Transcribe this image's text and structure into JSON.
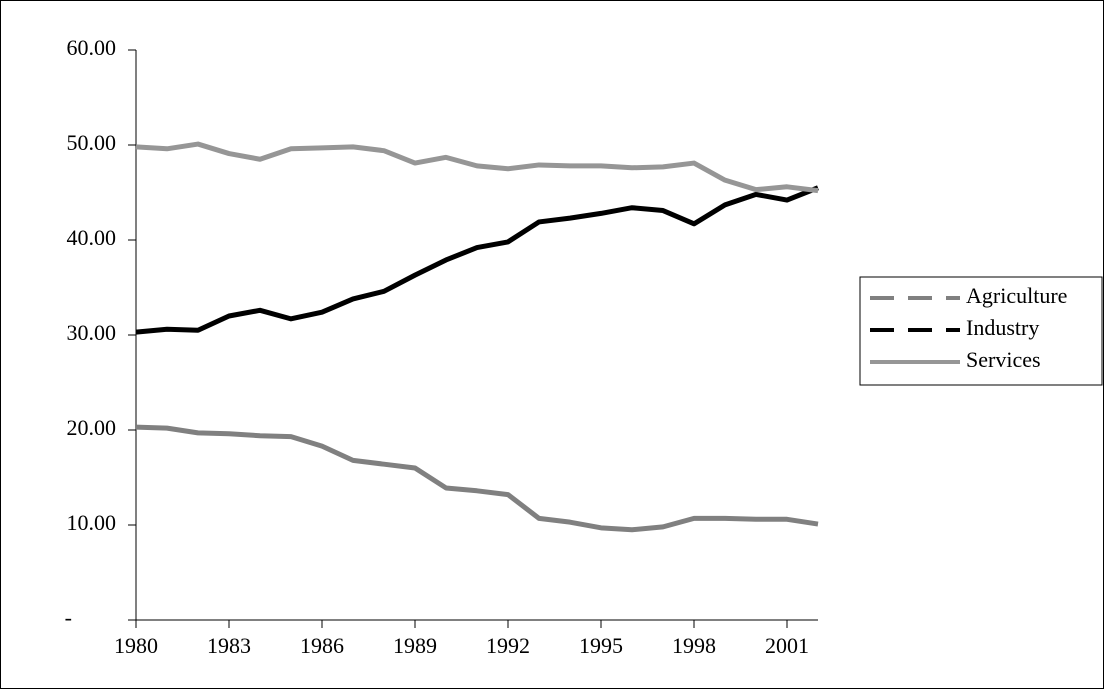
{
  "chart_data": {
    "type": "line",
    "x": [
      1980,
      1981,
      1982,
      1983,
      1984,
      1985,
      1986,
      1987,
      1988,
      1989,
      1990,
      1991,
      1992,
      1993,
      1994,
      1995,
      1996,
      1997,
      1998,
      1999,
      2000,
      2001,
      2002
    ],
    "series": [
      {
        "name": "Agriculture",
        "color": "#808080",
        "dashed": true,
        "values": [
          20.3,
          20.2,
          19.7,
          19.6,
          19.4,
          19.3,
          18.3,
          16.8,
          16.4,
          16.0,
          13.9,
          13.6,
          13.2,
          10.7,
          10.3,
          9.7,
          9.5,
          9.8,
          10.7,
          10.7,
          10.6,
          10.6,
          10.1
        ]
      },
      {
        "name": "Industry",
        "color": "#000000",
        "dashed": true,
        "values": [
          30.3,
          30.6,
          30.5,
          32.0,
          32.6,
          31.7,
          32.4,
          33.8,
          34.6,
          36.3,
          37.9,
          39.2,
          39.8,
          41.9,
          42.3,
          42.8,
          43.4,
          43.1,
          41.7,
          43.7,
          44.8,
          44.2,
          45.5
        ]
      },
      {
        "name": "Services",
        "color": "#969696",
        "dashed": false,
        "values": [
          49.8,
          49.6,
          50.1,
          49.1,
          48.5,
          49.6,
          49.7,
          49.8,
          49.4,
          48.1,
          48.7,
          47.8,
          47.5,
          47.9,
          47.8,
          47.8,
          47.6,
          47.7,
          48.1,
          46.3,
          45.3,
          45.6,
          45.2
        ]
      }
    ],
    "xlim": [
      1980,
      2002
    ],
    "xticks": [
      1980,
      1983,
      1986,
      1989,
      1992,
      1995,
      1998,
      2001
    ],
    "ylim": [
      0,
      60
    ],
    "yticks": [
      {
        "value": 0,
        "label": "-"
      },
      {
        "value": 10,
        "label": "10.00"
      },
      {
        "value": 20,
        "label": "20.00"
      },
      {
        "value": 30,
        "label": "30.00"
      },
      {
        "value": 40,
        "label": "40.00"
      },
      {
        "value": 50,
        "label": "50.00"
      },
      {
        "value": 60,
        "label": "60.00"
      }
    ],
    "grid": false,
    "legend": "right"
  }
}
